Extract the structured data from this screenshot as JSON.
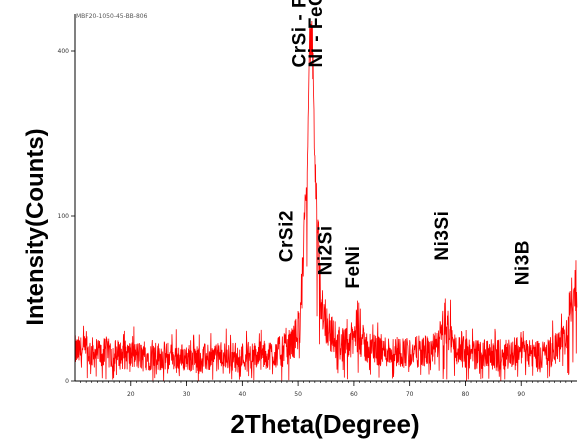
{
  "chart_data": {
    "type": "line",
    "sample_id": "MBF20-1050-45-BB-806",
    "xlabel": "2Theta(Degree)",
    "ylabel": "Intensity(Counts)",
    "xlim": [
      10,
      100
    ],
    "ylim": [
      0,
      430
    ],
    "x_ticks": [
      "20",
      "30",
      "40",
      "50",
      "60",
      "70",
      "80",
      "90"
    ],
    "x_tick_values": [
      20,
      30,
      40,
      50,
      60,
      70,
      80,
      90
    ],
    "y_ticks": [
      "0",
      "100",
      "400"
    ],
    "y_tick_values": [
      0,
      100,
      400
    ],
    "series_color": "#ff0000",
    "series": [
      {
        "x": [
          10,
          14,
          18,
          22,
          26,
          30,
          34,
          38,
          42,
          45,
          47,
          48.5,
          49.5,
          50.3,
          51,
          51.6,
          52,
          52.3,
          52.6,
          53,
          53.5,
          54,
          55,
          56,
          57,
          58,
          59,
          60,
          60.5,
          61,
          62,
          64,
          66,
          68,
          70,
          72,
          74,
          75,
          75.8,
          76.4,
          77,
          77.6,
          78.5,
          80,
          82,
          84,
          86,
          88,
          89.5,
          90.3,
          91,
          92,
          94,
          96,
          97.5,
          98.5,
          99.3,
          100
        ],
        "y": [
          18,
          17,
          16,
          15,
          15,
          14,
          14,
          15,
          15,
          16,
          18,
          21,
          26,
          36,
          70,
          185,
          400,
          430,
          395,
          190,
          90,
          52,
          36,
          28,
          24,
          22,
          22,
          26,
          30,
          27,
          21,
          19,
          18,
          18,
          17,
          18,
          18,
          21,
          29,
          37,
          30,
          23,
          19,
          17,
          16,
          16,
          16,
          17,
          19,
          21,
          19,
          17,
          16,
          18,
          23,
          34,
          53,
          62
        ]
      }
    ],
    "annotations": [
      {
        "text": "CrSi - FeNi",
        "x": 51.3,
        "y": 370
      },
      {
        "text": "Ni - FeCr",
        "x": 54.3,
        "y": 370
      },
      {
        "text": "CrSi2",
        "x": 49.0,
        "y": 72
      },
      {
        "text": "Ni2Si",
        "x": 56.0,
        "y": 64
      },
      {
        "text": "FeNi",
        "x": 60.9,
        "y": 56
      },
      {
        "text": "Ni3Si",
        "x": 76.9,
        "y": 73
      },
      {
        "text": "Ni3B",
        "x": 91.3,
        "y": 58
      }
    ],
    "grid": false,
    "legend": "none"
  }
}
